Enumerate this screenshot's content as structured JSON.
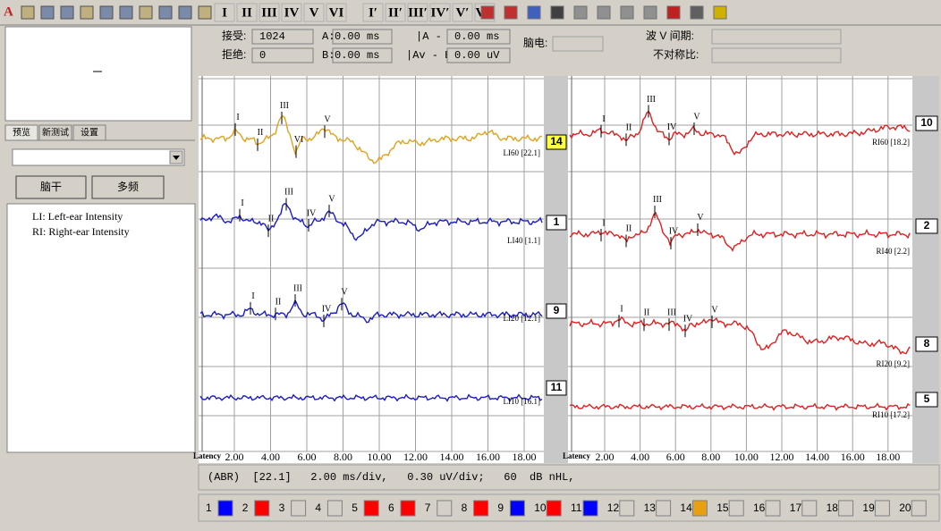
{
  "toolbar": {
    "logo": "A",
    "numerals": [
      "I",
      "II",
      "III",
      "IV",
      "V",
      "VI",
      "I′",
      "II′",
      "III′",
      "IV′",
      "V′",
      "VI′"
    ]
  },
  "info": {
    "accept_label": "接受:",
    "accept_value": "1024",
    "a_label": "A:",
    "a_value": "0.00 ms",
    "ab_label": "|A - B",
    "ab_value": "0.00 ms",
    "reject_label": "拒绝:",
    "reject_value": "0",
    "b_label": "B:",
    "b_value": "0.00 ms",
    "avb_label": "|Av - B",
    "avb_value": "0.00 uV",
    "eeg_label": "脑电:",
    "wave_label": "波 V 间期:",
    "asym_label": "不对称比:"
  },
  "tabs": [
    "预览",
    "新测试",
    "设置"
  ],
  "buttons": [
    "脑干",
    "多频"
  ],
  "legend": [
    "LI:  Left-ear Intensity",
    "RI:  Right-ear Intensity"
  ],
  "axis": {
    "label": "Latency",
    "ticks": [
      "2.00",
      "4.00",
      "6.00",
      "8.00",
      "10.00",
      "12.00",
      "14.00",
      "16.00",
      "18.00"
    ]
  },
  "left_traces": [
    {
      "tag": "14",
      "label": "LI60 [22.1]",
      "color": "#e0a21e",
      "peaks": [
        "I",
        "II",
        "III",
        "VI",
        "V"
      ]
    },
    {
      "tag": "1",
      "label": "LI40 [1.1]",
      "color": "#1c1cc8",
      "peaks": [
        "I",
        "II",
        "III",
        "IV",
        "V"
      ]
    },
    {
      "tag": "9",
      "label": "LI20 [12.1]",
      "color": "#1c1cc8",
      "peaks": [
        "I",
        "II",
        "III",
        "IV",
        "V"
      ]
    },
    {
      "tag": "11",
      "label": "LI10 [16.1]",
      "color": "#1c1cc8",
      "peaks": []
    }
  ],
  "right_traces": [
    {
      "tag": "10",
      "label": "RI60 [18.2]",
      "color": "#e02020",
      "peaks": [
        "I",
        "II",
        "III",
        "IV",
        "V"
      ]
    },
    {
      "tag": "2",
      "label": "RI40 [2.2]",
      "color": "#e02020",
      "peaks": [
        "I",
        "II",
        "III",
        "IV",
        "V"
      ]
    },
    {
      "tag": "8",
      "label": "RI20 [9.2]",
      "color": "#e02020",
      "peaks": [
        "I",
        "II",
        "III",
        "IV",
        "V"
      ]
    },
    {
      "tag": "5",
      "label": "RI10 [17.2]",
      "color": "#e02020",
      "peaks": []
    }
  ],
  "status": "(ABR)  [22.1]   2.00 ms/div,   0.30 uV/div;   60  dB nHL,",
  "channels": [
    {
      "label": "1",
      "color": "#0000ff"
    },
    {
      "label": "2",
      "color": "#ff0000"
    },
    {
      "label": "3"
    },
    {
      "label": "4"
    },
    {
      "label": "5",
      "color": "#ff0000"
    },
    {
      "label": "6",
      "color": "#ff0000"
    },
    {
      "label": "7"
    },
    {
      "label": "8",
      "color": "#ff0000"
    },
    {
      "label": "9",
      "color": "#0000ff"
    },
    {
      "label": "10",
      "color": "#ff0000"
    },
    {
      "label": "11",
      "color": "#0000ff"
    },
    {
      "label": "12"
    },
    {
      "label": "13"
    },
    {
      "label": "14",
      "color": "#e8a010"
    },
    {
      "label": "15"
    },
    {
      "label": "16"
    },
    {
      "label": "17"
    },
    {
      "label": "18"
    },
    {
      "label": "19"
    },
    {
      "label": "20"
    }
  ]
}
